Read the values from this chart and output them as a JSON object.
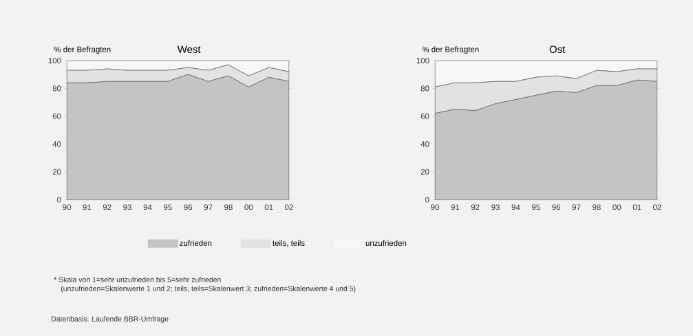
{
  "chart_data": [
    {
      "type": "area",
      "title": "West",
      "ylabel": "% der Befragten",
      "categories": [
        "90",
        "91",
        "92",
        "93",
        "94",
        "95",
        "96",
        "97",
        "98",
        "00",
        "01",
        "02"
      ],
      "series": [
        {
          "name": "zufrieden",
          "color": "#c4c4c4",
          "values": [
            84,
            84,
            85,
            85,
            85,
            85,
            90,
            85,
            89,
            81,
            88,
            85
          ]
        },
        {
          "name": "teils, teils",
          "color": "#e2e2e2",
          "values": [
            9,
            9,
            9,
            8,
            8,
            8,
            5,
            8,
            8,
            8,
            7,
            7
          ]
        },
        {
          "name": "unzufrieden",
          "color": "#f7f7f7",
          "values": [
            7,
            7,
            6,
            7,
            7,
            7,
            5,
            7,
            3,
            11,
            5,
            8
          ]
        }
      ],
      "stacked": true,
      "ylim": [
        0,
        100
      ],
      "yticks": [
        0,
        20,
        40,
        60,
        80,
        100
      ],
      "legend": "bottom",
      "annotations": [
        "* Skala von 1=sehr unzufrieden bis 5=sehr zufrieden",
        "(unzufrieden=Skalenwerte 1 und 2; teils, teils=Skalenwert 3; zufrieden=Skalenwerte 4 und 5)",
        "Datenbasis: Laufende BBR-Umfrage"
      ]
    },
    {
      "type": "area",
      "title": "Ost",
      "ylabel": "% der Befragten",
      "categories": [
        "90",
        "91",
        "92",
        "93",
        "94",
        "95",
        "96",
        "97",
        "98",
        "00",
        "01",
        "02"
      ],
      "series": [
        {
          "color": "#c4c4c4",
          "values": [
            62,
            65,
            64,
            69,
            72,
            75,
            78,
            77,
            82,
            82,
            86,
            85
          ]
        },
        {
          "color": "#e2e2e2",
          "values": [
            19,
            19,
            20,
            16,
            13,
            13,
            11,
            10,
            11,
            10,
            8,
            9
          ]
        },
        {
          "color": "#f7f7f7",
          "values": [
            19,
            16,
            16,
            15,
            15,
            12,
            11,
            13,
            7,
            8,
            6,
            6
          ]
        }
      ],
      "stacked": true,
      "ylim": [
        0,
        100
      ],
      "yticks": [
        0,
        20,
        40,
        60,
        80,
        100
      ]
    }
  ]
}
